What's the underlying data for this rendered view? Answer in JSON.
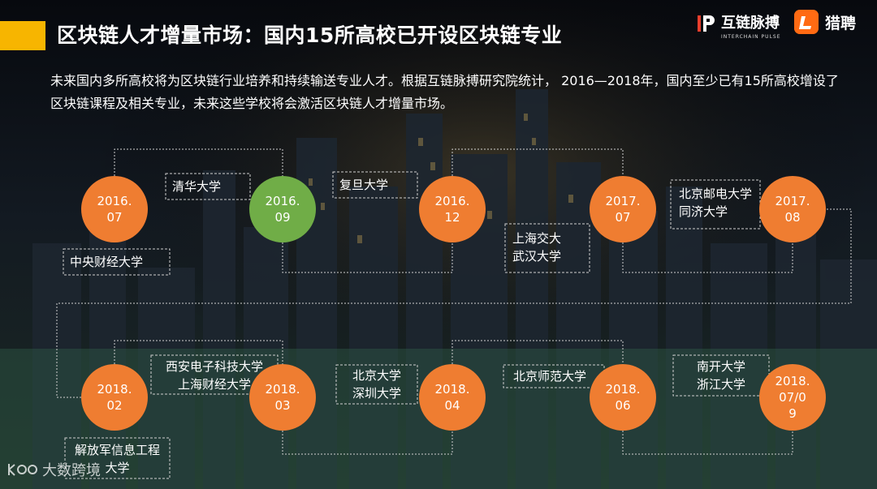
{
  "title": "区块链人才增量市场：国内15所高校已开设区块链专业",
  "logos": {
    "interchain_name": "互链脉搏",
    "interchain_sub": "INTERCHAIN PULSE",
    "liepin_name": "猎聘"
  },
  "description": "未来国内多所高校将为区块链行业培养和持续输送专业人才。根据互链脉搏研究院统计， 2016—2018年，国内至少已有15所高校增设了区块链课程及相关专业，未来这些学校将会激活区块链人才增量市场。",
  "timeline": [
    {
      "date": "2016.\n07",
      "color": "orange",
      "schools": "中央财经大学"
    },
    {
      "date": "2016.\n09",
      "color": "green",
      "schools": "清华大学"
    },
    {
      "date": "2016.\n12",
      "color": "orange",
      "schools": "复旦大学"
    },
    {
      "date": "2017.\n07",
      "color": "orange",
      "schools": "上海交大\n武汉大学"
    },
    {
      "date": "2017.\n08",
      "color": "orange",
      "schools": "北京邮电大学\n同济大学"
    },
    {
      "date": "2018.\n02",
      "color": "orange",
      "schools": "解放军信息工程\n大学"
    },
    {
      "date": "2018.\n03",
      "color": "orange",
      "schools": "西安电子科技大学\n上海财经大学"
    },
    {
      "date": "2018.\n04",
      "color": "orange",
      "schools": "北京大学\n深圳大学"
    },
    {
      "date": "2018.\n06",
      "color": "orange",
      "schools": "北京师范大学"
    },
    {
      "date": "2018.\n07/0\n9",
      "color": "orange",
      "schools": "南开大学\n浙江大学"
    }
  ],
  "watermark": "大数跨境",
  "colors": {
    "orange": "#ef7d31",
    "green": "#70ad47",
    "accent": "#f7b500"
  }
}
